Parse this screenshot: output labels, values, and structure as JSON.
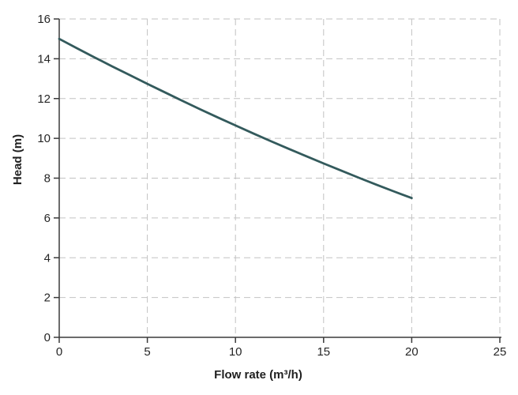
{
  "chart_data": {
    "type": "line",
    "title": "",
    "xlabel": "Flow rate (m³/h)",
    "ylabel": "Head (m)",
    "xlim": [
      0,
      25
    ],
    "ylim": [
      0,
      16
    ],
    "xticks": [
      0,
      5,
      10,
      15,
      20,
      25
    ],
    "yticks": [
      0,
      2,
      4,
      6,
      8,
      10,
      12,
      14,
      16
    ],
    "grid": "dashed",
    "legend": "none",
    "series": [
      {
        "x": [
          0,
          1,
          2,
          3,
          4,
          5,
          6,
          7,
          8,
          9,
          10,
          11,
          12,
          13,
          14,
          15,
          16,
          17,
          18,
          19,
          20
        ],
        "values": [
          15.0,
          14.53,
          14.07,
          13.62,
          13.18,
          12.74,
          12.31,
          11.88,
          11.46,
          11.05,
          10.65,
          10.25,
          9.86,
          9.48,
          9.11,
          8.74,
          8.38,
          8.02,
          7.67,
          7.33,
          7.0
        ]
      }
    ],
    "colors": {
      "line": "#335A5C",
      "grid": "#C2C2C2",
      "axis": "#3A3A3A",
      "text": "#262626",
      "background": "#FFFFFF"
    }
  }
}
